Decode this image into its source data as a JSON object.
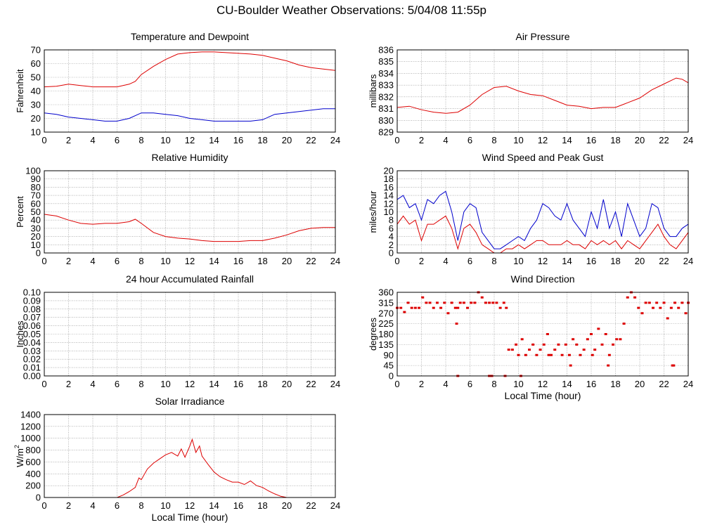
{
  "page": {
    "title": "CU-Boulder Weather Observations: 5/04/08 11:55p"
  },
  "colors": {
    "red": "#dd0000",
    "blue": "#0000cc",
    "grid": "#888888"
  },
  "chart_data": [
    {
      "id": "temperature",
      "type": "line",
      "title": "Temperature and Dewpoint",
      "xlabel": "",
      "ylabel": "Fahrenheit",
      "xlim": [
        0,
        24
      ],
      "ylim": [
        10,
        70
      ],
      "xticks": [
        0,
        2,
        4,
        6,
        8,
        10,
        12,
        14,
        16,
        18,
        20,
        22,
        24
      ],
      "yticks": [
        10,
        20,
        30,
        40,
        50,
        60,
        70
      ],
      "series": [
        {
          "color": "red",
          "x": [
            0,
            1,
            2,
            3,
            4,
            5,
            6,
            7,
            7.5,
            8,
            9,
            10,
            11,
            12,
            13,
            14,
            15,
            16,
            17,
            18,
            19,
            20,
            21,
            22,
            23,
            24
          ],
          "values": [
            43,
            43.5,
            45,
            44,
            43,
            43,
            43,
            45,
            47,
            52,
            58,
            63,
            67,
            68,
            68.5,
            68.5,
            68,
            67.5,
            67,
            66,
            64,
            62,
            59,
            57,
            56,
            55
          ]
        },
        {
          "color": "blue",
          "x": [
            0,
            1,
            2,
            3,
            4,
            5,
            6,
            7,
            8,
            9,
            10,
            11,
            12,
            13,
            14,
            15,
            16,
            17,
            18,
            19,
            20,
            21,
            22,
            23,
            24
          ],
          "values": [
            24,
            23,
            21,
            20,
            19,
            18,
            18,
            20,
            24,
            24,
            23,
            22,
            20,
            19,
            18,
            18,
            18,
            18,
            19,
            23,
            24,
            25,
            26,
            27,
            27
          ]
        }
      ]
    },
    {
      "id": "pressure",
      "type": "line",
      "title": "Air Pressure",
      "xlabel": "",
      "ylabel": "millibars",
      "xlim": [
        0,
        24
      ],
      "ylim": [
        829,
        836
      ],
      "xticks": [
        0,
        2,
        4,
        6,
        8,
        10,
        12,
        14,
        16,
        18,
        20,
        22,
        24
      ],
      "yticks": [
        829,
        830,
        831,
        832,
        833,
        834,
        835,
        836
      ],
      "series": [
        {
          "color": "red",
          "x": [
            0,
            1,
            2,
            3,
            4,
            5,
            6,
            7,
            8,
            9,
            10,
            11,
            12,
            13,
            14,
            15,
            16,
            17,
            18,
            19,
            20,
            21,
            22,
            23,
            23.5,
            24
          ],
          "values": [
            831.1,
            831.2,
            830.9,
            830.7,
            830.6,
            830.7,
            831.3,
            832.2,
            832.8,
            832.9,
            832.5,
            832.2,
            832.1,
            831.7,
            831.3,
            831.2,
            831.0,
            831.1,
            831.1,
            831.5,
            831.9,
            832.6,
            833.1,
            833.6,
            833.5,
            833.2
          ]
        }
      ]
    },
    {
      "id": "humidity",
      "type": "line",
      "title": "Relative Humidity",
      "xlabel": "",
      "ylabel": "Percent",
      "xlim": [
        0,
        24
      ],
      "ylim": [
        0,
        100
      ],
      "xticks": [
        0,
        2,
        4,
        6,
        8,
        10,
        12,
        14,
        16,
        18,
        20,
        22,
        24
      ],
      "yticks": [
        0,
        10,
        20,
        30,
        40,
        50,
        60,
        70,
        80,
        90,
        100
      ],
      "series": [
        {
          "color": "red",
          "x": [
            0,
            1,
            2,
            3,
            4,
            5,
            6,
            7,
            7.5,
            8,
            9,
            10,
            11,
            12,
            13,
            14,
            15,
            16,
            17,
            18,
            19,
            20,
            21,
            22,
            23,
            24
          ],
          "values": [
            47,
            45,
            40,
            36,
            35,
            36,
            36,
            38,
            41,
            36,
            25,
            20,
            18,
            17,
            15,
            14,
            14,
            14,
            15,
            15,
            18,
            22,
            27,
            30,
            31,
            31
          ]
        }
      ]
    },
    {
      "id": "wind-speed",
      "type": "line",
      "title": "Wind Speed and Peak Gust",
      "xlabel": "",
      "ylabel": "miles/hour",
      "xlim": [
        0,
        24
      ],
      "ylim": [
        0,
        20
      ],
      "xticks": [
        0,
        2,
        4,
        6,
        8,
        10,
        12,
        14,
        16,
        18,
        20,
        22,
        24
      ],
      "yticks": [
        0,
        2,
        4,
        6,
        8,
        10,
        12,
        14,
        16,
        18,
        20
      ],
      "series": [
        {
          "color": "blue",
          "x": [
            0,
            0.5,
            1,
            1.5,
            2,
            2.5,
            3,
            3.5,
            4,
            4.5,
            5,
            5.5,
            6,
            6.5,
            7,
            7.5,
            8,
            8.5,
            9,
            9.5,
            10,
            10.5,
            11,
            11.5,
            12,
            12.5,
            13,
            13.5,
            14,
            14.5,
            15,
            15.5,
            16,
            16.5,
            17,
            17.5,
            18,
            18.5,
            19,
            19.5,
            20,
            20.5,
            21,
            21.5,
            22,
            22.5,
            23,
            23.5,
            24
          ],
          "values": [
            13,
            14,
            11,
            12,
            8,
            13,
            12,
            14,
            15,
            10,
            3,
            10,
            12,
            11,
            5,
            3,
            1,
            1,
            2,
            3,
            4,
            3,
            6,
            8,
            12,
            11,
            9,
            8,
            12,
            8,
            6,
            4,
            10,
            6,
            13,
            6,
            10,
            4,
            12,
            8,
            4,
            6,
            12,
            11,
            6,
            4,
            4,
            6,
            7
          ]
        },
        {
          "color": "red",
          "x": [
            0,
            0.5,
            1,
            1.5,
            2,
            2.5,
            3,
            3.5,
            4,
            4.5,
            5,
            5.5,
            6,
            6.5,
            7,
            7.5,
            8,
            8.5,
            9,
            9.5,
            10,
            10.5,
            11,
            11.5,
            12,
            12.5,
            13,
            13.5,
            14,
            14.5,
            15,
            15.5,
            16,
            16.5,
            17,
            17.5,
            18,
            18.5,
            19,
            19.5,
            20,
            20.5,
            21,
            21.5,
            22,
            22.5,
            23,
            23.5,
            24
          ],
          "values": [
            7,
            9,
            7,
            8,
            3,
            7,
            7,
            8,
            9,
            6,
            1,
            6,
            7,
            5,
            2,
            1,
            0,
            0,
            1,
            1,
            2,
            1,
            2,
            3,
            3,
            2,
            2,
            2,
            3,
            2,
            2,
            1,
            3,
            2,
            3,
            2,
            3,
            1,
            3,
            2,
            1,
            3,
            5,
            7,
            4,
            2,
            1,
            3,
            5
          ]
        }
      ]
    },
    {
      "id": "rainfall",
      "type": "line",
      "title": "24 hour Accumulated Rainfall",
      "xlabel": "",
      "ylabel": "Inches",
      "xlim": [
        0,
        24
      ],
      "ylim": [
        0,
        0.1
      ],
      "xticks": [
        0,
        2,
        4,
        6,
        8,
        10,
        12,
        14,
        16,
        18,
        20,
        22,
        24
      ],
      "yticks": [
        "0.00",
        "0.01",
        "0.02",
        "0.03",
        "0.04",
        "0.05",
        "0.06",
        "0.07",
        "0.08",
        "0.09",
        "0.10"
      ],
      "series": [
        {
          "color": "red",
          "x": [
            0,
            24
          ],
          "values": [
            0,
            0
          ]
        }
      ]
    },
    {
      "id": "wind-direction",
      "type": "scatter",
      "title": "Wind Direction",
      "xlabel": "Local Time (hour)",
      "ylabel": "degrees",
      "xlim": [
        0,
        24
      ],
      "ylim": [
        0,
        360
      ],
      "xticks": [
        0,
        2,
        4,
        6,
        8,
        10,
        12,
        14,
        16,
        18,
        20,
        22,
        24
      ],
      "yticks": [
        0,
        45,
        90,
        135,
        180,
        225,
        270,
        315,
        360
      ],
      "series": [
        {
          "color": "red",
          "x": [
            0,
            0.3,
            0.6,
            0.9,
            1.2,
            1.5,
            1.8,
            2.1,
            2.4,
            2.7,
            3,
            3.3,
            3.6,
            3.9,
            4.2,
            4.5,
            4.8,
            5,
            5.2,
            5.5,
            5.8,
            6.1,
            6.4,
            6.7,
            7,
            7.3,
            7.6,
            7.9,
            8.2,
            8.5,
            8.8,
            9,
            9.2,
            9.5,
            9.8,
            10,
            10.3,
            10.6,
            10.9,
            11.2,
            11.5,
            11.8,
            12.1,
            12.4,
            12.7,
            13,
            13.3,
            13.6,
            13.9,
            14.2,
            14.5,
            14.8,
            15.1,
            15.4,
            15.7,
            16,
            16.3,
            16.6,
            16.9,
            17.2,
            17.5,
            17.8,
            18.1,
            18.4,
            18.7,
            19,
            19.3,
            19.6,
            19.9,
            20.2,
            20.5,
            20.8,
            21.1,
            21.4,
            21.7,
            22,
            22.3,
            22.6,
            22.9,
            23.2,
            23.5,
            23.8,
            24,
            4.9,
            5.0,
            7.6,
            7.8,
            8.9,
            10.2,
            12.5,
            14.3,
            16.1,
            17.4,
            22.7,
            22.8
          ],
          "values": [
            293,
            293,
            275,
            315,
            293,
            293,
            293,
            338,
            315,
            315,
            293,
            315,
            293,
            315,
            270,
            315,
            293,
            293,
            315,
            315,
            293,
            315,
            315,
            360,
            338,
            315,
            315,
            315,
            315,
            293,
            315,
            293,
            113,
            113,
            135,
            90,
            158,
            90,
            113,
            135,
            90,
            113,
            135,
            180,
            90,
            113,
            135,
            90,
            135,
            90,
            158,
            135,
            90,
            113,
            158,
            180,
            113,
            203,
            135,
            180,
            90,
            135,
            158,
            158,
            225,
            338,
            360,
            338,
            293,
            270,
            315,
            315,
            293,
            315,
            293,
            315,
            248,
            293,
            315,
            293,
            315,
            270,
            315,
            225,
            0,
            0,
            0,
            0,
            0,
            90,
            45,
            90,
            45,
            45,
            45
          ]
        }
      ]
    },
    {
      "id": "solar",
      "type": "line",
      "title": "Solar Irradiance",
      "xlabel": "Local Time (hour)",
      "ylabel": "W/m",
      "ylabel_sup": "2",
      "xlim": [
        0,
        24
      ],
      "ylim": [
        0,
        1400
      ],
      "xticks": [
        0,
        2,
        4,
        6,
        8,
        10,
        12,
        14,
        16,
        18,
        20,
        22,
        24
      ],
      "yticks": [
        0,
        200,
        400,
        600,
        800,
        1000,
        1200,
        1400
      ],
      "series": [
        {
          "color": "red",
          "x": [
            0,
            6,
            6.5,
            7,
            7.5,
            7.8,
            8,
            8.5,
            9,
            9.5,
            10,
            10.5,
            11,
            11.3,
            11.6,
            12,
            12.2,
            12.5,
            12.8,
            13,
            13.5,
            14,
            14.5,
            15,
            15.5,
            16,
            16.5,
            17,
            17.5,
            18,
            18.5,
            19,
            19.5,
            20,
            24
          ],
          "values": [
            0,
            0,
            40,
            100,
            170,
            330,
            300,
            480,
            580,
            650,
            720,
            760,
            700,
            820,
            680,
            870,
            980,
            760,
            870,
            700,
            560,
            430,
            350,
            300,
            260,
            260,
            220,
            280,
            200,
            170,
            110,
            60,
            20,
            0,
            0
          ]
        }
      ]
    }
  ]
}
